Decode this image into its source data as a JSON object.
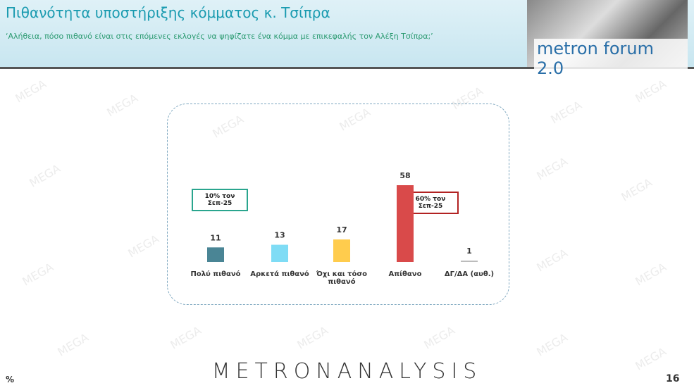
{
  "header": {
    "title": "Πιθανότητα υποστήριξης κόμματος κ. Τσίπρα",
    "subtitle": "‘Αλήθεια, πόσο πιθανό είναι στις επόμενες εκλογές να ψηφίζατε ένα κόμμα με επικεφαλής τον Αλέξη Τσίπρα;’",
    "logo": "metron forum 2.0"
  },
  "watermark": "MEGA",
  "chart_data": {
    "type": "bar",
    "categories": [
      "Πολύ πιθανό",
      "Αρκετά πιθανό",
      "Όχι και τόσο πιθανό",
      "Απίθανο",
      "ΔΓ/ΔΑ (αυθ.)"
    ],
    "values": [
      11,
      13,
      17,
      58,
      1
    ],
    "colors": [
      "#4a8595",
      "#7fdcf5",
      "#ffcc4d",
      "#d94a4a",
      "#bbbbbb"
    ],
    "annotations": [
      {
        "text": "10% τον Σεπ-25",
        "color": "#2aa58e"
      },
      {
        "text": "60% τον Σεπ-25",
        "color": "#b22222"
      }
    ]
  },
  "footer": {
    "unit": "%",
    "brand": "METRONANALYSIS",
    "page": "16"
  }
}
